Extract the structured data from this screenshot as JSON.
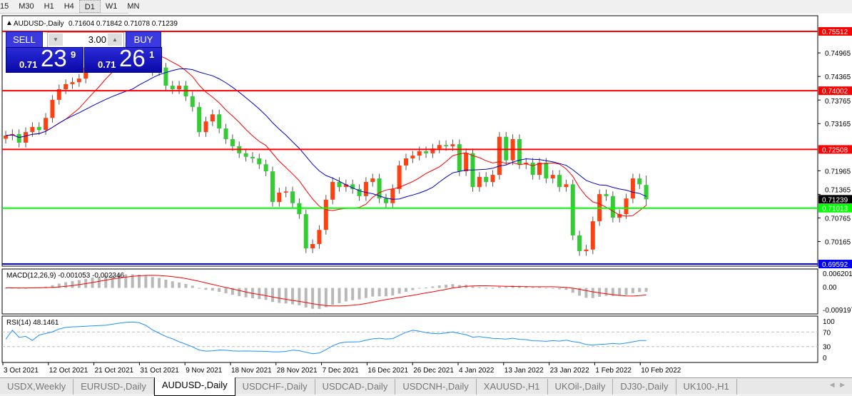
{
  "toolbar": {
    "timeframes": [
      "15",
      "M30",
      "H1",
      "H4",
      "D1",
      "W1",
      "MN"
    ],
    "active": "D1"
  },
  "chart": {
    "symbol_header": "AUDUSD-,Daily",
    "ohlc_header": "0.71604 0.71842 0.71078 0.71239",
    "colors": {
      "bull": "#ff4010",
      "bear": "#32cd32",
      "ma_fast": "#ff0000",
      "ma_slow": "#0000cc",
      "macd_hist": "#b8b8b8",
      "macd_signal": "#ff0000",
      "rsi": "#1e90ff",
      "bid_label": "#000000"
    }
  },
  "trade_panel": {
    "sell_label": "SELL",
    "buy_label": "BUY",
    "lots": "3.00",
    "sell_prefix": "0.71",
    "sell_big": "23",
    "sell_sup": "9",
    "buy_prefix": "0.71",
    "buy_big": "26",
    "buy_sup": "1",
    "down_icon": "triangle-down",
    "up_icon": "triangle-up"
  },
  "price_axis": {
    "min": 0.69592,
    "max": 0.75512,
    "ticks": [
      "0.74965",
      "0.74365",
      "0.73765",
      "0.73165",
      "0.71965",
      "0.71365",
      "0.70765",
      "0.70165"
    ],
    "bid": "0.71239"
  },
  "hlines": [
    {
      "price": "0.75512",
      "color": "#ff0000"
    },
    {
      "price": "0.74002",
      "color": "#ff0000"
    },
    {
      "price": "0.72508",
      "color": "#ff0000"
    },
    {
      "price": "0.71013",
      "color": "#00ff00"
    },
    {
      "price": "0.69592",
      "color": "#0000ff"
    }
  ],
  "macd": {
    "label": "MACD(12,26,9) -0.001053 -0.002346",
    "ticks": [
      "0.006201",
      "0.00",
      "-0.009197"
    ]
  },
  "rsi": {
    "label": "RSI(14) 48.1461",
    "ticks": [
      "100",
      "70",
      "30",
      "0"
    ],
    "levels": [
      70,
      30
    ]
  },
  "date_axis": [
    "3 Oct 2021",
    "12 Oct 2021",
    "21 Oct 2021",
    "31 Oct 2021",
    "9 Nov 2021",
    "18 Nov 2021",
    "28 Nov 2021",
    "7 Dec 2021",
    "16 Dec 2021",
    "26 Dec 2021",
    "4 Jan 2022",
    "13 Jan 2022",
    "23 Jan 2022",
    "1 Feb 2022",
    "10 Feb 2022"
  ],
  "chart_data": {
    "type": "candlestick",
    "closes": [
      0.7286,
      0.729,
      0.7268,
      0.7295,
      0.7308,
      0.73,
      0.7331,
      0.7377,
      0.7404,
      0.7417,
      0.7422,
      0.7431,
      0.7459,
      0.7477,
      0.7486,
      0.75,
      0.7504,
      0.7508,
      0.7511,
      0.7515,
      0.7495,
      0.7468,
      0.745,
      0.7459,
      0.7413,
      0.7404,
      0.7413,
      0.7386,
      0.7359,
      0.7295,
      0.7322,
      0.734,
      0.7304,
      0.7277,
      0.7259,
      0.7241,
      0.7232,
      0.7228,
      0.7213,
      0.7195,
      0.7117,
      0.7141,
      0.7144,
      0.7114,
      0.7086,
      0.6999,
      0.701,
      0.7046,
      0.7123,
      0.7168,
      0.7155,
      0.7162,
      0.715,
      0.7132,
      0.7168,
      0.7177,
      0.7126,
      0.7114,
      0.715,
      0.721,
      0.7228,
      0.7235,
      0.7246,
      0.7241,
      0.7253,
      0.7262,
      0.7259,
      0.7264,
      0.7195,
      0.7241,
      0.7155,
      0.7181,
      0.7168,
      0.7186,
      0.7283,
      0.7223,
      0.7277,
      0.7213,
      0.7217,
      0.7186,
      0.7217,
      0.7177,
      0.7186,
      0.7155,
      0.7162,
      0.7032,
      0.6992,
      0.6996,
      0.7068,
      0.7137,
      0.7132,
      0.7077,
      0.7086,
      0.7126,
      0.7177,
      0.7162
    ],
    "last_candle": {
      "open": 0.71604,
      "high": 0.71842,
      "low": 0.71078,
      "close": 0.71239
    }
  },
  "tabs": [
    "USDX,Weekly",
    "EURUSD-,Daily",
    "AUDUSD-,Daily",
    "USDCHF-,Daily",
    "USDCAD-,Daily",
    "USDCNH-,Daily",
    "XAUUSD-,H1",
    "UKOil-,Daily",
    "DJ30-,Daily",
    "UK100-,H1"
  ],
  "active_tab": "AUDUSD-,Daily"
}
